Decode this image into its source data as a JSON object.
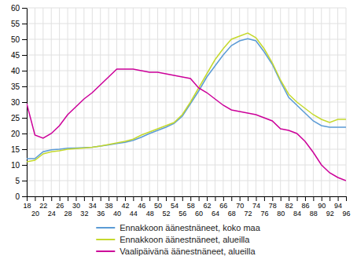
{
  "chart_data": {
    "type": "line",
    "x": [
      18,
      20,
      22,
      24,
      26,
      28,
      30,
      32,
      34,
      36,
      38,
      40,
      42,
      44,
      46,
      48,
      50,
      52,
      54,
      56,
      58,
      60,
      62,
      64,
      66,
      68,
      70,
      72,
      74,
      76,
      78,
      80,
      82,
      84,
      86,
      88,
      90,
      92,
      94,
      96
    ],
    "series": [
      {
        "name": "Ennakkoon äänestnäneet, koko maa",
        "color": "#5B9BD5",
        "values": [
          12.0,
          12.0,
          14.2,
          14.8,
          15.0,
          15.3,
          15.4,
          15.5,
          15.6,
          16.0,
          16.4,
          16.8,
          17.2,
          17.8,
          18.8,
          20.0,
          21.0,
          22.0,
          23.2,
          25.5,
          29.5,
          33.5,
          38.0,
          41.5,
          45.0,
          48.0,
          49.5,
          50.2,
          49.5,
          46.0,
          42.0,
          36.5,
          31.5,
          29.0,
          26.5,
          24.0,
          22.5,
          22.0,
          22.0,
          22.0
        ]
      },
      {
        "name": "Ennakkoon äänestnäneet, alueilla",
        "color": "#C5D92D",
        "values": [
          11.0,
          11.5,
          13.5,
          14.2,
          14.5,
          15.0,
          15.2,
          15.4,
          15.6,
          16.0,
          16.5,
          17.0,
          17.5,
          18.2,
          19.5,
          20.5,
          21.5,
          22.5,
          23.5,
          26.0,
          30.0,
          34.5,
          39.0,
          43.5,
          47.0,
          50.0,
          51.0,
          52.0,
          50.5,
          47.0,
          42.5,
          37.0,
          32.5,
          30.0,
          28.0,
          26.0,
          24.5,
          23.5,
          24.5,
          24.5
        ]
      },
      {
        "name": "Vaalipäivänä äänestnäneet, alueilla",
        "color": "#CC0099",
        "values": [
          29.5,
          19.5,
          18.5,
          20.0,
          22.5,
          26.0,
          28.5,
          31.0,
          33.0,
          35.5,
          38.0,
          40.5,
          40.5,
          40.5,
          40.0,
          39.5,
          39.5,
          39.0,
          38.5,
          38.0,
          37.5,
          34.5,
          33.0,
          31.0,
          29.0,
          27.5,
          27.0,
          26.5,
          26.0,
          25.0,
          24.0,
          21.5,
          21.0,
          20.0,
          17.5,
          14.0,
          10.0,
          7.5,
          6.0,
          5.0
        ]
      }
    ],
    "xlim": [
      18,
      96
    ],
    "xticks": [
      18,
      20,
      22,
      24,
      26,
      28,
      30,
      32,
      34,
      36,
      38,
      40,
      42,
      44,
      46,
      48,
      50,
      52,
      54,
      56,
      58,
      60,
      62,
      64,
      66,
      68,
      70,
      72,
      74,
      76,
      78,
      80,
      82,
      84,
      86,
      88,
      90,
      92,
      94,
      96
    ],
    "ylim": [
      0,
      60
    ],
    "yticks": [
      0,
      5,
      10,
      15,
      20,
      25,
      30,
      35,
      40,
      45,
      50,
      55,
      60
    ],
    "grid": true,
    "legend": "bottom"
  }
}
